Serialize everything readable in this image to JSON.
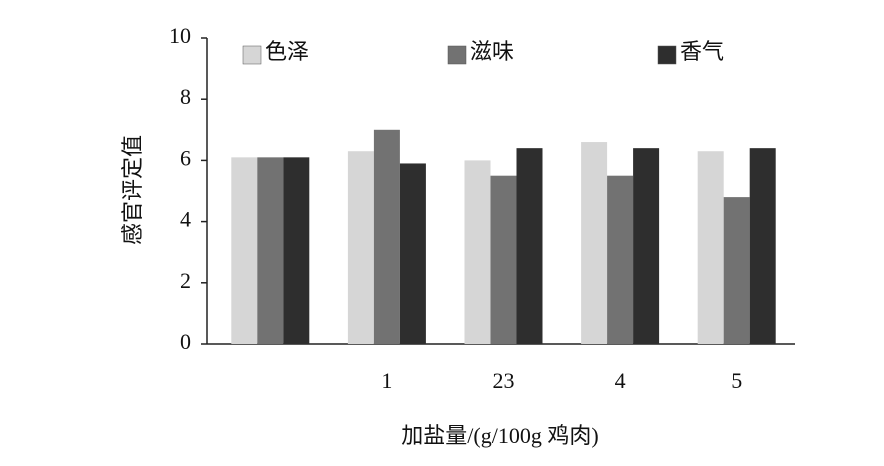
{
  "chart_data": {
    "type": "bar",
    "y_label": "感官评定值",
    "x_label": "加盐量/(g/100g 鸡肉)",
    "categories": [
      null,
      "1",
      "23",
      "4",
      "5"
    ],
    "series": [
      {
        "name": "色泽",
        "color": "#d6d6d6",
        "values": [
          6.1,
          6.3,
          6.0,
          6.6,
          6.3
        ]
      },
      {
        "name": "滋味",
        "color": "#727272",
        "values": [
          6.1,
          7.0,
          5.5,
          5.5,
          4.8
        ]
      },
      {
        "name": "香气",
        "color": "#2e2e2e",
        "values": [
          6.1,
          5.9,
          6.4,
          6.4,
          6.4
        ]
      }
    ],
    "ylim": [
      0,
      10
    ],
    "yticks": [
      0,
      2,
      4,
      6,
      8,
      10
    ],
    "grid": false
  }
}
